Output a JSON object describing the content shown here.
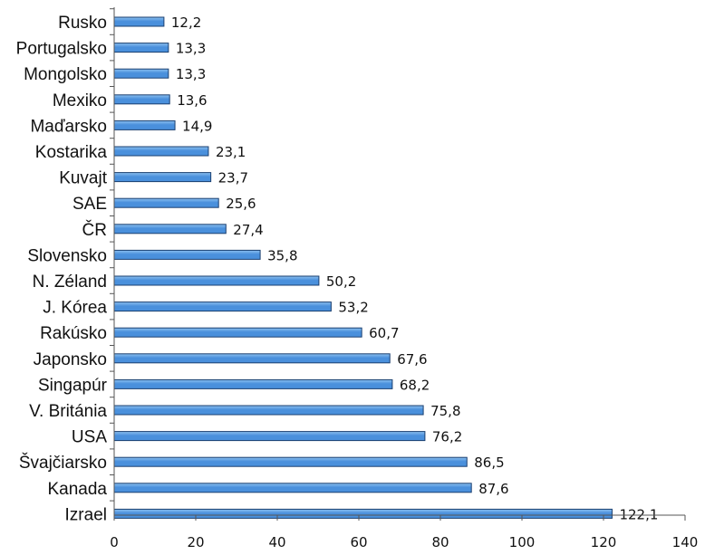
{
  "chart_data": {
    "type": "bar",
    "orientation": "horizontal",
    "title": "",
    "xlabel": "",
    "ylabel": "",
    "categories": [
      "Rusko",
      "Portugalsko",
      "Mongolsko",
      "Mexiko",
      "Maďarsko",
      "Kostarika",
      "Kuvajt",
      "SAE",
      "ČR",
      "Slovensko",
      "N. Zéland",
      "J. Kórea",
      "Rakúsko",
      "Japonsko",
      "Singapúr",
      "V. Británia",
      "USA",
      "Švajčiarsko",
      "Kanada",
      "Izrael"
    ],
    "values": [
      12.2,
      13.3,
      13.3,
      13.6,
      14.9,
      23.1,
      23.7,
      25.6,
      27.4,
      35.8,
      50.2,
      53.2,
      60.7,
      67.6,
      68.2,
      75.8,
      76.2,
      86.5,
      87.6,
      122.1
    ],
    "value_labels": [
      "12,2",
      "13,3",
      "13,3",
      "13,6",
      "14,9",
      "23,1",
      "23,7",
      "25,6",
      "27,4",
      "35,8",
      "50,2",
      "53,2",
      "60,7",
      "67,6",
      "68,2",
      "75,8",
      "76,2",
      "86,5",
      "87,6",
      "122,1"
    ],
    "xlim": [
      0,
      140
    ],
    "xticks": [
      0,
      20,
      40,
      60,
      80,
      100,
      120,
      140
    ],
    "xtick_labels": [
      "0",
      "20",
      "40",
      "60",
      "80",
      "100",
      "120",
      "140"
    ],
    "grid": false,
    "legend": "none",
    "colors": {
      "bar": "#4a90dc",
      "bar_edge": "#1a3f70",
      "bar_highlight": "#8cc0f0",
      "axis": "#555555"
    }
  }
}
